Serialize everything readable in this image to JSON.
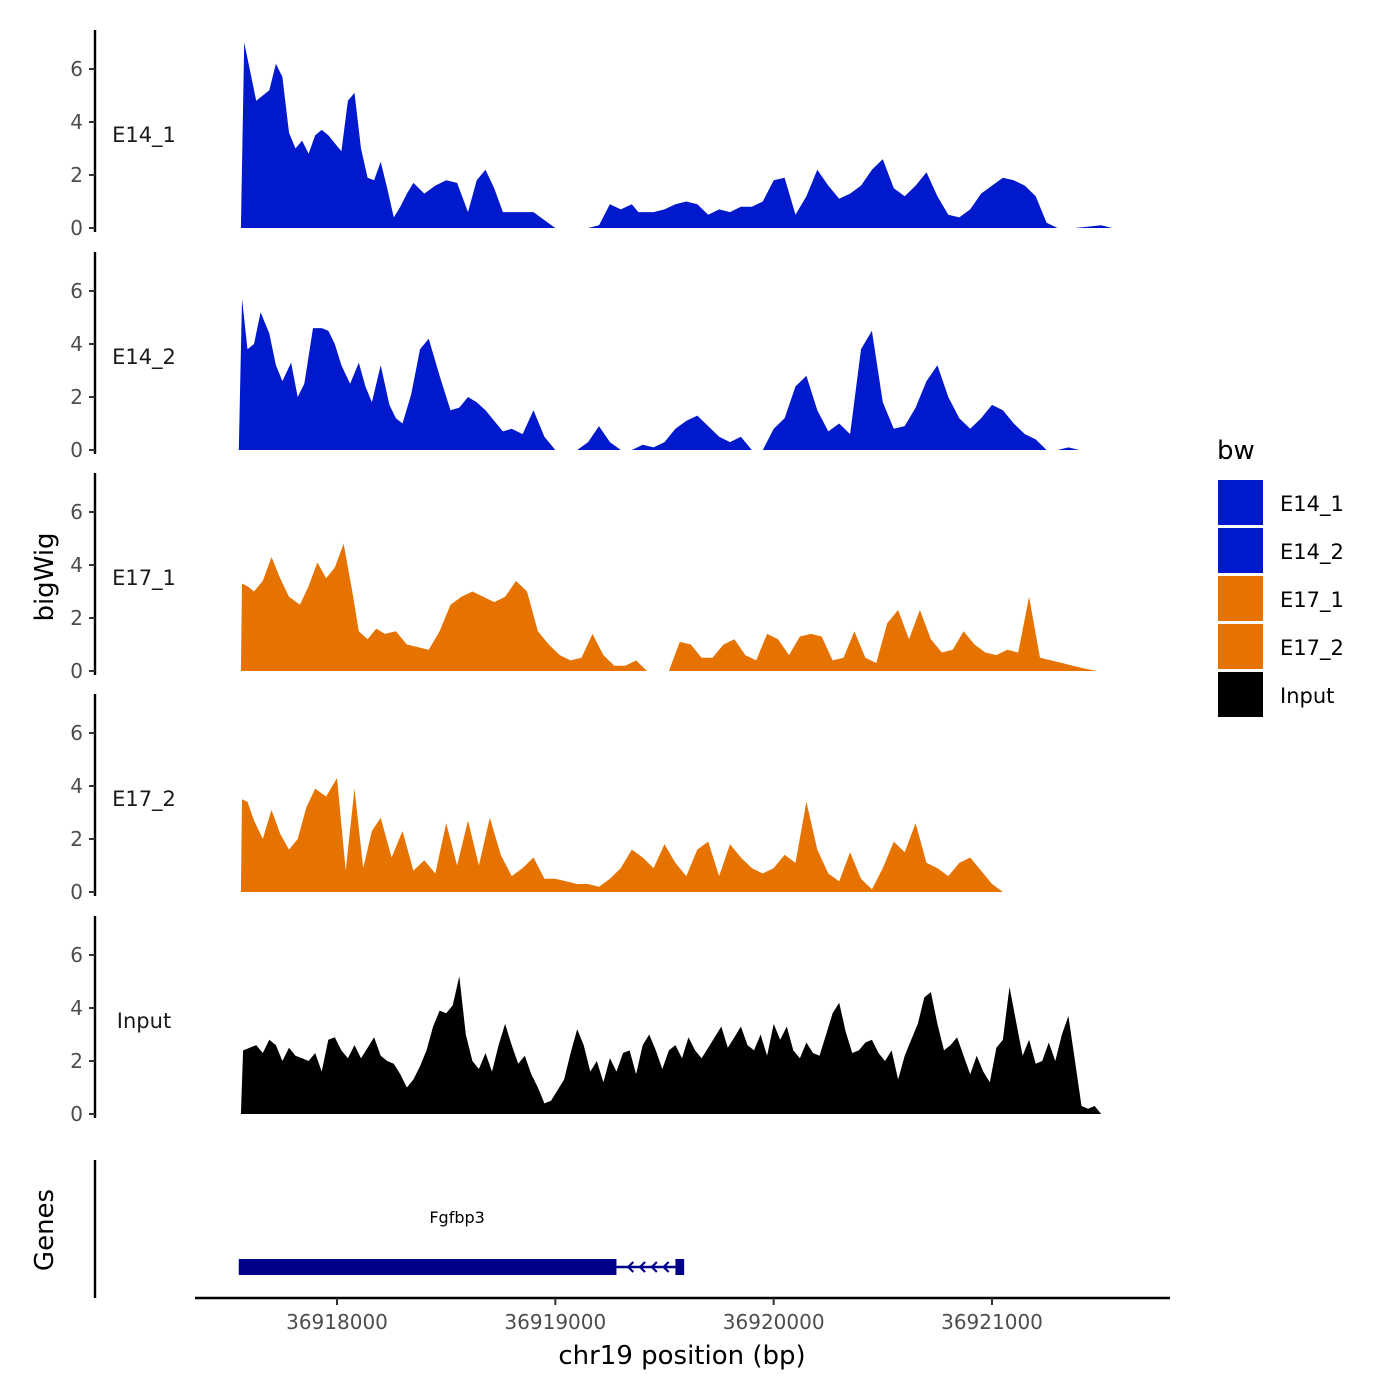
{
  "chart_data": {
    "type": "area",
    "title": "",
    "xlabel": "chr19 position (bp)",
    "ylabel": "bigWig",
    "genes_label": "Genes",
    "xlim": [
      36917250,
      36921800
    ],
    "ylim": [
      0,
      7.5
    ],
    "x_ticks": [
      36918000,
      36919000,
      36920000,
      36921000
    ],
    "x_tick_labels": [
      "36918000",
      "36919000",
      "36920000",
      "36921000"
    ],
    "y_ticks": [
      0,
      2,
      4,
      6
    ],
    "y_tick_labels": [
      "0",
      "2",
      "4",
      "6"
    ],
    "legend": {
      "title": "bw",
      "position": "right",
      "entries": [
        {
          "label": "E14_1",
          "color": "#0019CC"
        },
        {
          "label": "E14_2",
          "color": "#0019CC"
        },
        {
          "label": "E17_1",
          "color": "#E67300"
        },
        {
          "label": "E17_2",
          "color": "#E67300"
        },
        {
          "label": "Input",
          "color": "#000000"
        }
      ]
    },
    "series": [
      {
        "name": "E14_1",
        "color": "#0019CC",
        "x": [
          36917560,
          36917575,
          36917600,
          36917630,
          36917660,
          36917690,
          36917720,
          36917750,
          36917780,
          36917810,
          36917840,
          36917870,
          36917900,
          36917930,
          36917960,
          36917990,
          36918020,
          36918050,
          36918080,
          36918110,
          36918140,
          36918170,
          36918200,
          36918230,
          36918260,
          36918290,
          36918320,
          36918350,
          36918400,
          36918450,
          36918500,
          36918550,
          36918600,
          36918640,
          36918680,
          36918720,
          36918760,
          36918800,
          36918850,
          36918900,
          36918950,
          36919000,
          36919050,
          36919100,
          36919150,
          36919200,
          36919250,
          36919300,
          36919350,
          36919380,
          36919420,
          36919450,
          36919500,
          36919550,
          36919600,
          36919650,
          36919700,
          36919750,
          36919800,
          36919850,
          36919900,
          36919950,
          36920000,
          36920050,
          36920100,
          36920150,
          36920200,
          36920250,
          36920300,
          36920350,
          36920400,
          36920450,
          36920500,
          36920550,
          36920600,
          36920650,
          36920700,
          36920750,
          36920800,
          36920850,
          36920900,
          36920950,
          36921000,
          36921050,
          36921100,
          36921150,
          36921200,
          36921250,
          36921300,
          36921350,
          36921380,
          36921500,
          36921550,
          36921590
        ],
        "values": [
          0.0,
          7.0,
          6.0,
          4.8,
          5.0,
          5.2,
          6.2,
          5.7,
          3.6,
          3.0,
          3.3,
          2.8,
          3.5,
          3.7,
          3.5,
          3.2,
          2.9,
          4.8,
          5.1,
          3.0,
          1.9,
          1.8,
          2.5,
          1.5,
          0.4,
          0.8,
          1.3,
          1.7,
          1.3,
          1.6,
          1.8,
          1.7,
          0.6,
          1.8,
          2.2,
          1.5,
          0.6,
          0.6,
          0.6,
          0.6,
          0.3,
          0.0,
          0.0,
          0.0,
          0.0,
          0.1,
          0.9,
          0.7,
          0.9,
          0.6,
          0.6,
          0.6,
          0.7,
          0.9,
          1.0,
          0.9,
          0.5,
          0.7,
          0.6,
          0.8,
          0.8,
          1.0,
          1.8,
          1.9,
          0.5,
          1.2,
          2.2,
          1.6,
          1.1,
          1.3,
          1.6,
          2.2,
          2.6,
          1.5,
          1.2,
          1.6,
          2.1,
          1.2,
          0.5,
          0.4,
          0.7,
          1.3,
          1.6,
          1.9,
          1.8,
          1.6,
          1.2,
          0.2,
          0.0,
          0.0,
          0.0,
          0.1,
          0.0,
          0.0
        ]
      },
      {
        "name": "E14_2",
        "color": "#0019CC",
        "x": [
          36917550,
          36917565,
          36917590,
          36917620,
          36917650,
          36917690,
          36917720,
          36917750,
          36917790,
          36917820,
          36917850,
          36917890,
          36917930,
          36917960,
          36917990,
          36918020,
          36918060,
          36918100,
          36918130,
          36918160,
          36918200,
          36918240,
          36918270,
          36918300,
          36918340,
          36918380,
          36918420,
          36918470,
          36918520,
          36918560,
          36918600,
          36918640,
          36918680,
          36918720,
          36918760,
          36918800,
          36918850,
          36918900,
          36918950,
          36919000,
          36919050,
          36919100,
          36919150,
          36919200,
          36919250,
          36919300,
          36919350,
          36919400,
          36919450,
          36919500,
          36919550,
          36919600,
          36919650,
          36919700,
          36919750,
          36919800,
          36919850,
          36919900,
          36919950,
          36920000,
          36920050,
          36920100,
          36920150,
          36920200,
          36920250,
          36920300,
          36920350,
          36920400,
          36920450,
          36920500,
          36920550,
          36920600,
          36920650,
          36920700,
          36920750,
          36920800,
          36920850,
          36920900,
          36920950,
          36921000,
          36921050,
          36921100,
          36921150,
          36921200,
          36921250,
          36921300,
          36921350,
          36921400,
          36921450,
          36921500,
          36921550,
          36921590
        ],
        "values": [
          0.0,
          5.7,
          3.8,
          4.0,
          5.2,
          4.4,
          3.2,
          2.6,
          3.3,
          2.0,
          2.5,
          4.6,
          4.6,
          4.5,
          4.0,
          3.2,
          2.5,
          3.3,
          2.4,
          1.8,
          3.2,
          1.7,
          1.2,
          1.0,
          2.1,
          3.8,
          4.2,
          2.8,
          1.5,
          1.6,
          2.0,
          1.8,
          1.5,
          1.1,
          0.7,
          0.8,
          0.6,
          1.5,
          0.5,
          0.0,
          0.0,
          0.0,
          0.3,
          0.9,
          0.3,
          0.0,
          0.0,
          0.2,
          0.1,
          0.3,
          0.8,
          1.1,
          1.3,
          0.9,
          0.5,
          0.3,
          0.5,
          0.0,
          0.0,
          0.8,
          1.2,
          2.4,
          2.8,
          1.5,
          0.7,
          1.0,
          0.6,
          3.8,
          4.5,
          1.8,
          0.8,
          0.9,
          1.6,
          2.6,
          3.2,
          2.0,
          1.2,
          0.8,
          1.2,
          1.7,
          1.5,
          1.0,
          0.6,
          0.4,
          0.0,
          0.0,
          0.1,
          0.0,
          0.0,
          0.0,
          0.0,
          0.0
        ]
      },
      {
        "name": "E17_1",
        "color": "#E67300",
        "x": [
          36917560,
          36917565,
          36917590,
          36917620,
          36917660,
          36917700,
          36917740,
          36917780,
          36917830,
          36917870,
          36917910,
          36917950,
          36917990,
          36918030,
          36918070,
          36918100,
          36918140,
          36918180,
          36918220,
          36918270,
          36918320,
          36918370,
          36918420,
          36918470,
          36918520,
          36918570,
          36918620,
          36918670,
          36918720,
          36918770,
          36918820,
          36918870,
          36918920,
          36918970,
          36919020,
          36919070,
          36919120,
          36919170,
          36919220,
          36919270,
          36919320,
          36919370,
          36919420,
          36919470,
          36919520,
          36919570,
          36919620,
          36919670,
          36919720,
          36919770,
          36919820,
          36919870,
          36919920,
          36919970,
          36920020,
          36920070,
          36920120,
          36920170,
          36920220,
          36920270,
          36920320,
          36920370,
          36920420,
          36920470,
          36920520,
          36920570,
          36920620,
          36920670,
          36920720,
          36920770,
          36920820,
          36920870,
          36920920,
          36920970,
          36921020,
          36921070,
          36921120,
          36921170,
          36921220,
          36921270,
          36921320,
          36921370,
          36921420,
          36921480
        ],
        "values": [
          0.0,
          3.3,
          3.2,
          3.0,
          3.4,
          4.3,
          3.5,
          2.8,
          2.5,
          3.2,
          4.1,
          3.5,
          3.9,
          4.8,
          3.0,
          1.5,
          1.2,
          1.6,
          1.4,
          1.5,
          1.0,
          0.9,
          0.8,
          1.5,
          2.5,
          2.8,
          3.0,
          2.8,
          2.6,
          2.8,
          3.4,
          3.0,
          1.5,
          1.0,
          0.6,
          0.4,
          0.5,
          1.4,
          0.6,
          0.2,
          0.2,
          0.4,
          0.0,
          0.0,
          0.0,
          1.1,
          1.0,
          0.5,
          0.5,
          1.0,
          1.2,
          0.6,
          0.4,
          1.4,
          1.2,
          0.6,
          1.3,
          1.4,
          1.3,
          0.4,
          0.5,
          1.5,
          0.5,
          0.3,
          1.8,
          2.3,
          1.2,
          2.3,
          1.2,
          0.7,
          0.8,
          1.5,
          1.0,
          0.7,
          0.6,
          0.8,
          0.7,
          2.8,
          0.5,
          0.4,
          0.3,
          0.2,
          0.1,
          0.0
        ]
      },
      {
        "name": "E17_2",
        "color": "#E67300",
        "x": [
          36917560,
          36917565,
          36917590,
          36917620,
          36917660,
          36917700,
          36917740,
          36917780,
          36917820,
          36917860,
          36917900,
          36917950,
          36918000,
          36918040,
          36918080,
          36918120,
          36918160,
          36918200,
          36918250,
          36918300,
          36918350,
          36918400,
          36918450,
          36918500,
          36918550,
          36918600,
          36918650,
          36918700,
          36918750,
          36918800,
          36918850,
          36918900,
          36918950,
          36919000,
          36919050,
          36919100,
          36919150,
          36919200,
          36919250,
          36919300,
          36919350,
          36919400,
          36919450,
          36919500,
          36919550,
          36919600,
          36919650,
          36919700,
          36919750,
          36919800,
          36919850,
          36919900,
          36919950,
          36920000,
          36920050,
          36920100,
          36920150,
          36920200,
          36920250,
          36920300,
          36920350,
          36920400,
          36920450,
          36920500,
          36920550,
          36920600,
          36920650,
          36920700,
          36920750,
          36920800,
          36920850,
          36920900,
          36920950,
          36921000,
          36921050,
          36921100,
          36921150,
          36921200,
          36921250,
          36921300,
          36921350,
          36921400,
          36921450,
          36921500,
          36921600
        ],
        "values": [
          0.0,
          3.5,
          3.4,
          2.7,
          2.0,
          3.1,
          2.2,
          1.6,
          2.0,
          3.2,
          3.9,
          3.6,
          4.3,
          0.8,
          3.9,
          0.9,
          2.3,
          2.8,
          1.3,
          2.3,
          0.8,
          1.2,
          0.7,
          2.6,
          1.0,
          2.7,
          1.0,
          2.8,
          1.4,
          0.6,
          0.9,
          1.3,
          0.5,
          0.5,
          0.4,
          0.3,
          0.3,
          0.2,
          0.5,
          0.9,
          1.6,
          1.3,
          0.9,
          1.8,
          1.1,
          0.6,
          1.6,
          1.9,
          0.6,
          1.8,
          1.3,
          0.9,
          0.7,
          0.9,
          1.4,
          1.1,
          3.4,
          1.6,
          0.7,
          0.4,
          1.5,
          0.5,
          0.1,
          0.9,
          1.9,
          1.5,
          2.6,
          1.1,
          0.9,
          0.6,
          1.1,
          1.3,
          0.8,
          0.3,
          0.0,
          0.0,
          0.0,
          0.0,
          0.0,
          0.0,
          0.0,
          0.0,
          0.0,
          0.0,
          0.0
        ]
      },
      {
        "name": "Input",
        "color": "#000000",
        "x": [
          36917560,
          36917570,
          36917600,
          36917630,
          36917660,
          36917690,
          36917720,
          36917750,
          36917780,
          36917810,
          36917840,
          36917870,
          36917900,
          36917930,
          36917960,
          36917990,
          36918020,
          36918050,
          36918080,
          36918110,
          36918140,
          36918170,
          36918200,
          36918230,
          36918260,
          36918290,
          36918320,
          36918350,
          36918380,
          36918410,
          36918440,
          36918470,
          36918500,
          36918530,
          36918560,
          36918590,
          36918620,
          36918650,
          36918680,
          36918710,
          36918740,
          36918770,
          36918800,
          36918830,
          36918860,
          36918890,
          36918920,
          36918950,
          36918980,
          36919010,
          36919040,
          36919070,
          36919100,
          36919130,
          36919160,
          36919190,
          36919220,
          36919250,
          36919280,
          36919310,
          36919340,
          36919370,
          36919400,
          36919430,
          36919460,
          36919490,
          36919520,
          36919550,
          36919580,
          36919610,
          36919640,
          36919670,
          36919700,
          36919730,
          36919760,
          36919790,
          36919820,
          36919850,
          36919880,
          36919910,
          36919940,
          36919970,
          36920000,
          36920030,
          36920060,
          36920090,
          36920120,
          36920150,
          36920180,
          36920210,
          36920240,
          36920270,
          36920300,
          36920330,
          36920360,
          36920390,
          36920420,
          36920450,
          36920480,
          36920510,
          36920540,
          36920570,
          36920600,
          36920630,
          36920660,
          36920690,
          36920720,
          36920750,
          36920780,
          36920810,
          36920840,
          36920870,
          36920900,
          36920930,
          36920960,
          36920990,
          36921020,
          36921050,
          36921080,
          36921110,
          36921140,
          36921170,
          36921200,
          36921230,
          36921260,
          36921290,
          36921320,
          36921350,
          36921380,
          36921410,
          36921440,
          36921470,
          36921500,
          36921530,
          36921560,
          36921590
        ],
        "values": [
          0.0,
          2.4,
          2.5,
          2.6,
          2.3,
          2.8,
          2.6,
          2.0,
          2.5,
          2.2,
          2.1,
          2.0,
          2.3,
          1.6,
          2.8,
          2.9,
          2.4,
          2.1,
          2.6,
          2.1,
          2.5,
          2.9,
          2.2,
          2.0,
          1.9,
          1.5,
          1.0,
          1.3,
          1.8,
          2.4,
          3.3,
          3.9,
          3.8,
          4.1,
          5.2,
          3.0,
          2.0,
          1.7,
          2.3,
          1.6,
          2.6,
          3.4,
          2.6,
          1.9,
          2.2,
          1.5,
          1.0,
          0.4,
          0.5,
          0.9,
          1.3,
          2.3,
          3.2,
          2.6,
          1.6,
          2.0,
          1.2,
          2.1,
          1.6,
          2.3,
          2.4,
          1.5,
          2.6,
          3.0,
          2.4,
          1.7,
          2.4,
          2.6,
          2.1,
          2.9,
          2.4,
          2.1,
          2.5,
          2.9,
          3.3,
          2.5,
          2.9,
          3.3,
          2.6,
          2.4,
          3.0,
          2.2,
          3.4,
          2.8,
          3.3,
          2.4,
          2.1,
          2.7,
          2.3,
          2.2,
          3.0,
          3.8,
          4.2,
          3.1,
          2.3,
          2.4,
          2.7,
          2.8,
          2.3,
          2.0,
          2.4,
          1.3,
          2.2,
          2.8,
          3.4,
          4.4,
          4.6,
          3.4,
          2.4,
          2.6,
          2.9,
          2.2,
          1.5,
          2.2,
          1.6,
          1.2,
          2.5,
          2.8,
          4.8,
          3.5,
          2.2,
          2.8,
          1.9,
          2.0,
          2.7,
          2.0,
          3.0,
          3.7,
          2.0,
          0.3,
          0.2,
          0.3,
          0.0,
          0.0,
          0.0,
          0.0
        ]
      }
    ],
    "genes": [
      {
        "name": "Fgfbp3",
        "strand": "-",
        "color": "#00008B",
        "exons": [
          [
            36917550,
            36919280
          ],
          [
            36919550,
            36919590
          ]
        ],
        "intron": [
          36919280,
          36919550
        ]
      }
    ]
  }
}
